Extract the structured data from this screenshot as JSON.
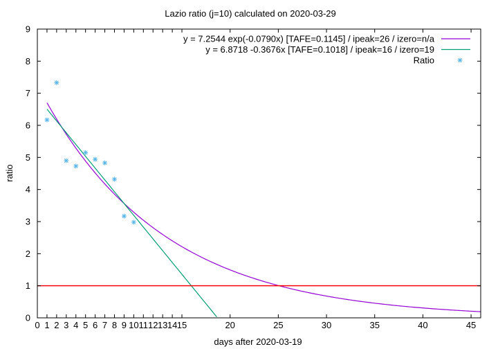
{
  "chart_data": {
    "type": "scatter",
    "title": "Lazio ratio (j=10) calculated on 2020-03-29",
    "xlabel": "days after 2020-03-19",
    "ylabel": "ratio",
    "xlim": [
      0,
      46
    ],
    "ylim": [
      0,
      9
    ],
    "x_tick_labels": [
      "0",
      "1",
      "2",
      "3",
      "4",
      "5",
      "6",
      "7",
      "8",
      "9",
      "10",
      "11",
      "12",
      "13",
      "14",
      "15",
      "20",
      "25",
      "30",
      "35",
      "40",
      "45"
    ],
    "y_tick_labels": [
      "0",
      "1",
      "2",
      "3",
      "4",
      "5",
      "6",
      "7",
      "8",
      "9"
    ],
    "grid": false,
    "legend_position": "top-right",
    "series": [
      {
        "name": "y = 7.2544 exp(-0.0790x)  [TAFE=0.1145] / ipeak=26 / izero=n/a",
        "kind": "line",
        "model": "exp",
        "a": 7.2544,
        "b": -0.079,
        "x_range": [
          1,
          46
        ],
        "color": "#9400d3"
      },
      {
        "name": "y = 6.8718 -0.3676x  [TAFE=0.1018] / ipeak=16 / izero=19",
        "kind": "line",
        "model": "linear",
        "a": 6.8718,
        "b": -0.3676,
        "x_range": [
          1,
          18.7
        ],
        "color": "#009e73"
      },
      {
        "name": "Ratio",
        "kind": "points",
        "marker": "asterisk",
        "color": "#56b4e9",
        "x": [
          1,
          2,
          3,
          4,
          5,
          6,
          7,
          8,
          9,
          10
        ],
        "y": [
          6.17,
          7.33,
          4.9,
          4.73,
          5.15,
          4.94,
          4.83,
          4.32,
          3.17,
          2.98
        ]
      },
      {
        "name": "",
        "kind": "hline",
        "y": 1,
        "color": "#ff0000"
      }
    ]
  }
}
